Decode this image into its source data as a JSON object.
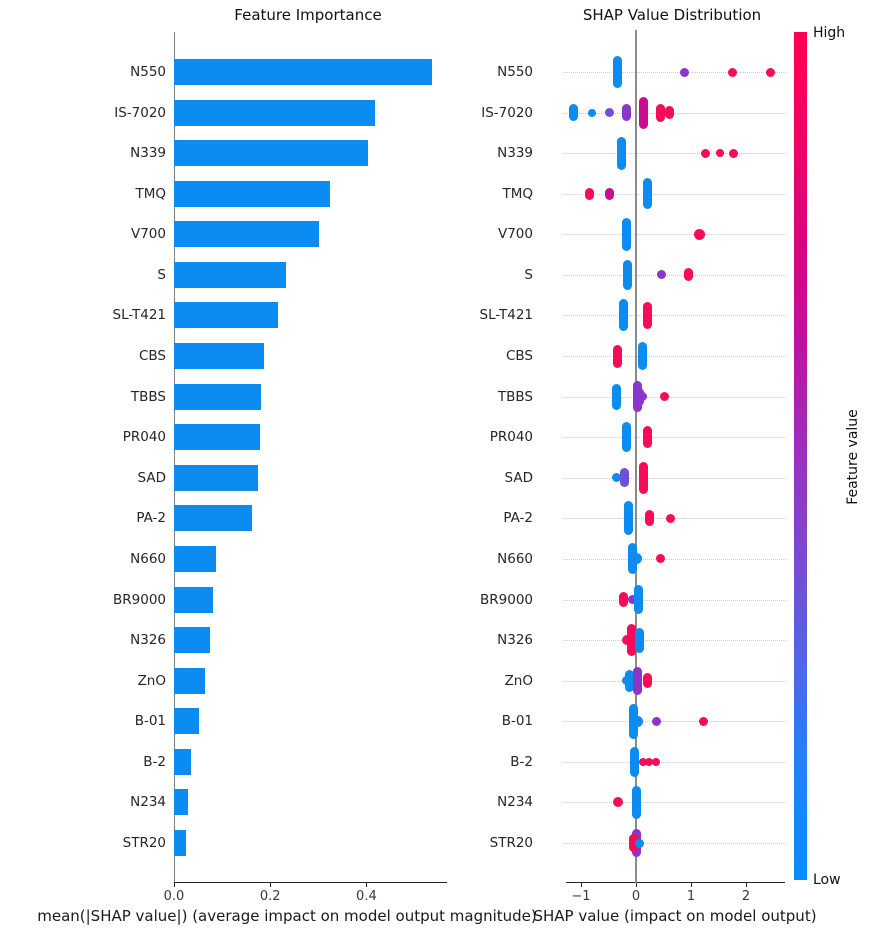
{
  "chart_data": [
    {
      "type": "bar",
      "title": "Feature Importance",
      "xlabel": "mean(|SHAP value|) (average impact on model output magnitude)",
      "categories": [
        "N550",
        "IS-7020",
        "N339",
        "TMQ",
        "V700",
        "S",
        "SL-T421",
        "CBS",
        "TBBS",
        "PR040",
        "SAD",
        "PA-2",
        "N660",
        "BR9000",
        "N326",
        "ZnO",
        "B-01",
        "B-2",
        "N234",
        "STR20"
      ],
      "values": [
        0.537,
        0.417,
        0.404,
        0.325,
        0.301,
        0.232,
        0.216,
        0.187,
        0.18,
        0.178,
        0.174,
        0.162,
        0.087,
        0.081,
        0.075,
        0.064,
        0.052,
        0.035,
        0.029,
        0.025
      ],
      "xticks": {
        "labels": [
          "0.0",
          "0.2",
          "0.4"
        ],
        "values": [
          0,
          0.2,
          0.4
        ]
      },
      "xlim": [
        0,
        0.568
      ],
      "bar_color": "#0c8cf0",
      "grid": false
    },
    {
      "type": "scatter",
      "title": "SHAP Value Distribution",
      "xlabel": "SHAP value (impact on model output)",
      "xticks": {
        "labels": [
          "−1",
          "0",
          "1",
          "2"
        ],
        "values": [
          -1,
          0,
          1,
          2
        ]
      },
      "xlim": [
        -1.29,
        2.73
      ],
      "zero_line": true,
      "grid": "dotted",
      "point_colors": {
        "b": "#0c8cf0",
        "r": "#f70c57",
        "m": "#cb0b90",
        "p": "#8b35c9",
        "v": "#6e50d8"
      },
      "rows": [
        {
          "feature": "N550",
          "points": [
            [
              -0.33,
              "b",
              32
            ],
            [
              0.89,
              "p",
              9
            ],
            [
              1.76,
              "r",
              9
            ],
            [
              2.45,
              "r",
              9
            ]
          ]
        },
        {
          "feature": "IS-7020",
          "points": [
            [
              -1.13,
              "b",
              17
            ],
            [
              -0.8,
              "b",
              8
            ],
            [
              -0.49,
              "v",
              9
            ],
            [
              -0.18,
              "p",
              17
            ],
            [
              0.14,
              "m",
              32
            ],
            [
              0.45,
              "r",
              18
            ],
            [
              0.6,
              "r",
              13
            ]
          ]
        },
        {
          "feature": "N339",
          "points": [
            [
              -0.26,
              "b",
              33
            ],
            [
              1.27,
              "r",
              9
            ],
            [
              1.53,
              "r",
              8
            ],
            [
              1.78,
              "r",
              9
            ]
          ]
        },
        {
          "feature": "TMQ",
          "points": [
            [
              -0.85,
              "r",
              12
            ],
            [
              -0.49,
              "m",
              12
            ],
            [
              0.2,
              "b",
              31
            ]
          ]
        },
        {
          "feature": "V700",
          "points": [
            [
              -0.18,
              "b",
              33
            ],
            [
              1.16,
              "r",
              11
            ]
          ]
        },
        {
          "feature": "S",
          "points": [
            [
              -0.16,
              "b",
              30
            ],
            [
              0.47,
              "p",
              9
            ],
            [
              0.96,
              "r",
              13
            ]
          ]
        },
        {
          "feature": "SL-T421",
          "points": [
            [
              -0.22,
              "b",
              32
            ],
            [
              0.21,
              "r",
              27
            ]
          ]
        },
        {
          "feature": "CBS",
          "points": [
            [
              -0.34,
              "r",
              23
            ],
            [
              0.12,
              "b",
              28
            ]
          ]
        },
        {
          "feature": "TBBS",
          "points": [
            [
              -0.36,
              "b",
              26
            ],
            [
              0.02,
              "p",
              31
            ],
            [
              0.07,
              "p",
              18
            ],
            [
              0.11,
              "p",
              9
            ],
            [
              0.52,
              "r",
              9
            ]
          ]
        },
        {
          "feature": "PR040",
          "points": [
            [
              -0.17,
              "b",
              30
            ],
            [
              0.2,
              "r",
              22
            ]
          ]
        },
        {
          "feature": "SAD",
          "points": [
            [
              -0.35,
              "b",
              9
            ],
            [
              -0.21,
              "v",
              19
            ],
            [
              0.13,
              "r",
              32
            ]
          ]
        },
        {
          "feature": "PA-2",
          "points": [
            [
              -0.13,
              "b",
              34
            ],
            [
              0.24,
              "r",
              16
            ],
            [
              0.62,
              "r",
              9
            ]
          ]
        },
        {
          "feature": "N660",
          "points": [
            [
              -0.07,
              "b",
              31
            ],
            [
              0.01,
              "b",
              11
            ],
            [
              0.44,
              "r",
              9
            ]
          ]
        },
        {
          "feature": "BR9000",
          "points": [
            [
              -0.23,
              "r",
              15
            ],
            [
              -0.07,
              "p",
              9
            ],
            [
              0.05,
              "b",
              29
            ]
          ]
        },
        {
          "feature": "N326",
          "points": [
            [
              -0.09,
              "r",
              32
            ],
            [
              -0.16,
              "r",
              10
            ],
            [
              0.07,
              "b",
              25
            ]
          ]
        },
        {
          "feature": "ZnO",
          "points": [
            [
              -0.11,
              "b",
              22
            ],
            [
              -0.17,
              "b",
              9
            ],
            [
              0.02,
              "p",
              28
            ],
            [
              0.21,
              "r",
              15
            ]
          ]
        },
        {
          "feature": "B-01",
          "points": [
            [
              -0.04,
              "b",
              35
            ],
            [
              0.03,
              "b",
              11
            ],
            [
              0.38,
              "p",
              9
            ],
            [
              1.22,
              "r",
              9
            ]
          ]
        },
        {
          "feature": "B-2",
          "points": [
            [
              -0.03,
              "b",
              30
            ],
            [
              0.12,
              "r",
              8
            ],
            [
              0.24,
              "r",
              8
            ],
            [
              0.36,
              "r",
              8
            ]
          ]
        },
        {
          "feature": "N234",
          "points": [
            [
              -0.33,
              "r",
              10
            ],
            [
              0,
              "b",
              33
            ]
          ]
        },
        {
          "feature": "STR20",
          "points": [
            [
              0,
              "p",
              28
            ],
            [
              -0.05,
              "r",
              18
            ],
            [
              0.06,
              "b",
              9
            ]
          ]
        }
      ],
      "colorbar": {
        "label": "Feature value",
        "high_label": "High",
        "low_label": "Low",
        "gradient": [
          "#fe0051",
          "#ef0465",
          "#d9047f",
          "#bc14a0",
          "#9a31bf",
          "#7a4ad4",
          "#4d68e7",
          "#1d83f8",
          "#0a8cfb"
        ]
      }
    }
  ]
}
